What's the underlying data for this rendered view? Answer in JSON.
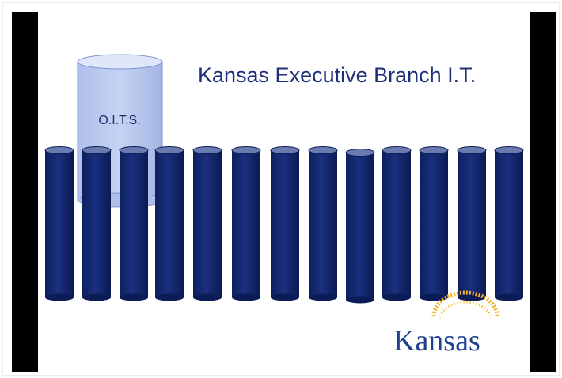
{
  "title": "Kansas Executive Branch I.T.",
  "oits": {
    "label": "O.I.T.S."
  },
  "logo": {
    "text": "Kansas"
  }
}
